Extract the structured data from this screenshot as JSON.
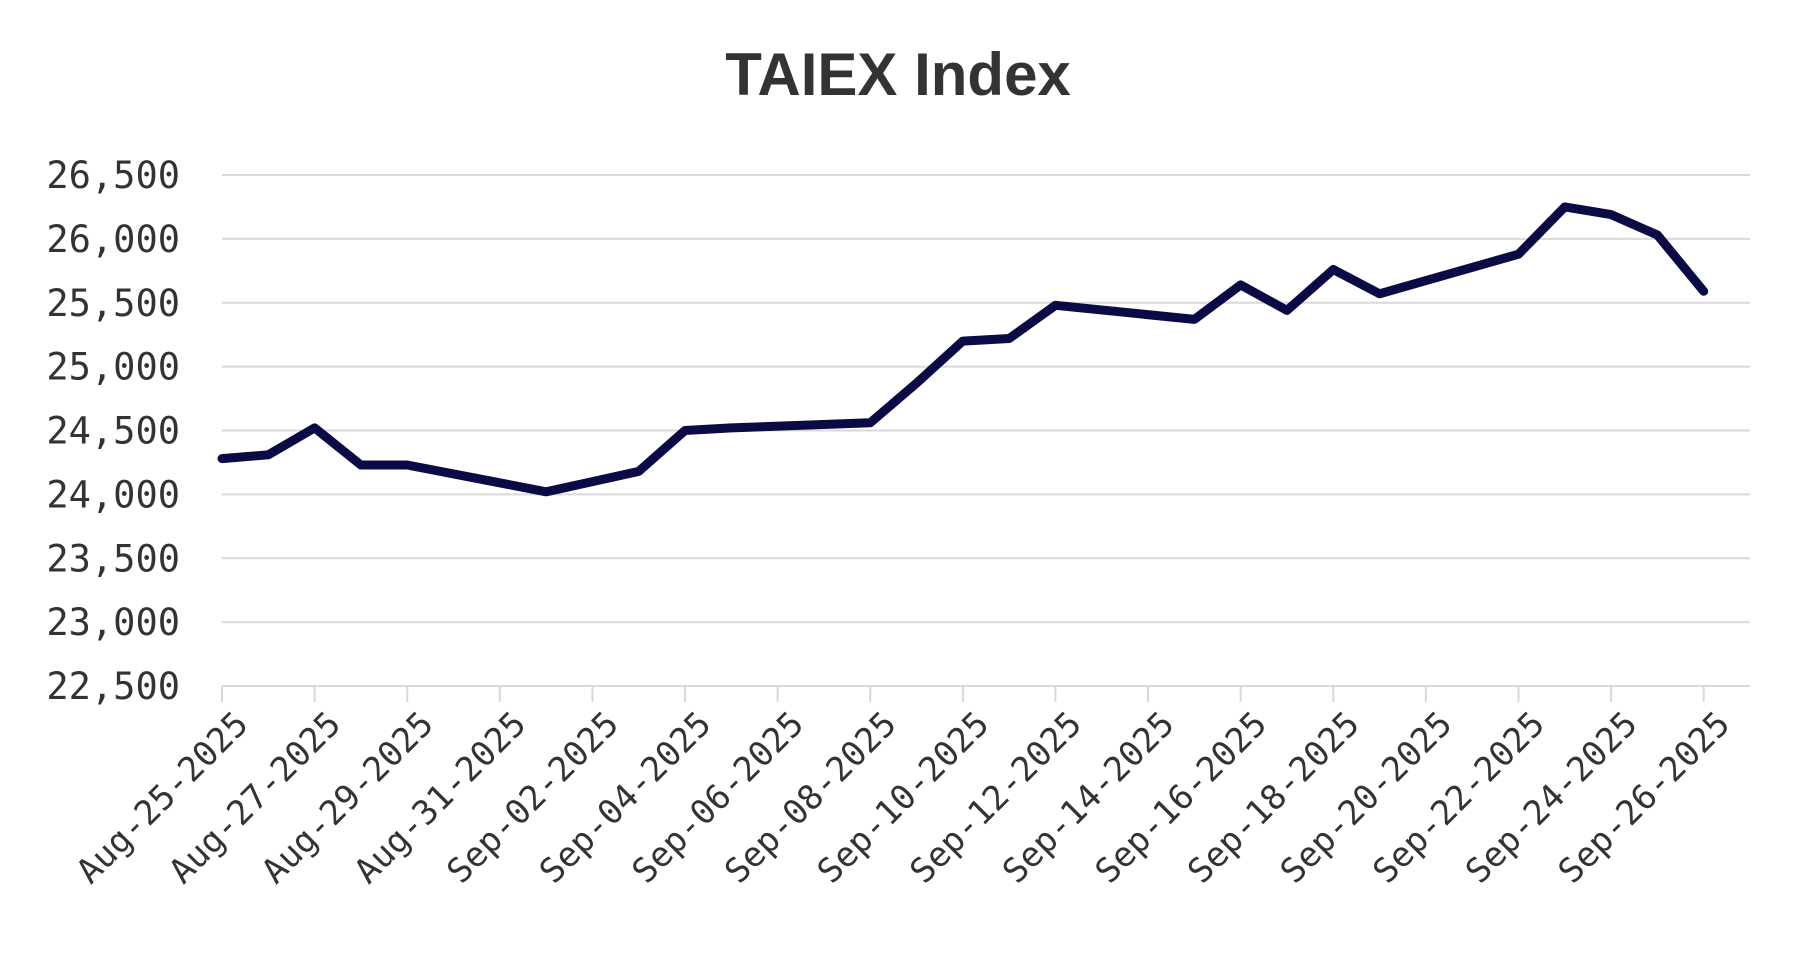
{
  "chart_data": {
    "type": "line",
    "title": "TAIEX Index",
    "xlabel": "",
    "ylabel": "",
    "ylim": [
      22500,
      26500
    ],
    "yticks": [
      22500,
      23000,
      23500,
      24000,
      24500,
      25000,
      25500,
      26000,
      26500
    ],
    "ytick_labels": [
      "22,500",
      "23,000",
      "23,500",
      "24,000",
      "24,500",
      "25,000",
      "25,500",
      "26,000",
      "26,500"
    ],
    "xlim": [
      "2025-08-25",
      "2025-09-27"
    ],
    "xtick_labels": [
      "Aug-25-2025",
      "Aug-27-2025",
      "Aug-29-2025",
      "Aug-31-2025",
      "Sep-02-2025",
      "Sep-04-2025",
      "Sep-06-2025",
      "Sep-08-2025",
      "Sep-10-2025",
      "Sep-12-2025",
      "Sep-14-2025",
      "Sep-16-2025",
      "Sep-18-2025",
      "Sep-20-2025",
      "Sep-22-2025",
      "Sep-24-2025",
      "Sep-26-2025"
    ],
    "xtick_dates": [
      "2025-08-25",
      "2025-08-27",
      "2025-08-29",
      "2025-08-31",
      "2025-09-02",
      "2025-09-04",
      "2025-09-06",
      "2025-09-08",
      "2025-09-10",
      "2025-09-12",
      "2025-09-14",
      "2025-09-16",
      "2025-09-18",
      "2025-09-20",
      "2025-09-22",
      "2025-09-24",
      "2025-09-26"
    ],
    "grid": true,
    "legend": "none",
    "series": [
      {
        "color": "#0a0a45",
        "x": [
          "2025-08-25",
          "2025-08-26",
          "2025-08-27",
          "2025-08-28",
          "2025-08-29",
          "2025-09-01",
          "2025-09-02",
          "2025-09-03",
          "2025-09-04",
          "2025-09-05",
          "2025-09-08",
          "2025-09-09",
          "2025-09-10",
          "2025-09-11",
          "2025-09-12",
          "2025-09-15",
          "2025-09-16",
          "2025-09-17",
          "2025-09-18",
          "2025-09-19",
          "2025-09-22",
          "2025-09-23",
          "2025-09-24",
          "2025-09-25",
          "2025-09-26"
        ],
        "values": [
          24280,
          24310,
          24520,
          24230,
          24230,
          24020,
          24100,
          24180,
          24500,
          24520,
          24560,
          24870,
          25200,
          25220,
          25480,
          25370,
          25640,
          25440,
          25760,
          25570,
          25880,
          26250,
          26190,
          26030,
          25590
        ]
      }
    ]
  }
}
